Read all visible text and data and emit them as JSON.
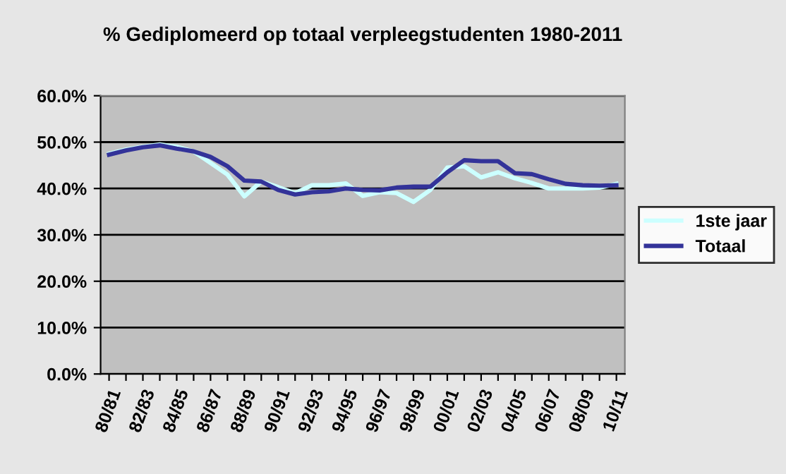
{
  "chart_data": {
    "type": "line",
    "title": "% Gediplomeerd op totaal verpleegstudenten 1980-2011",
    "categories": [
      "80/81",
      null,
      "82/83",
      null,
      "84/85",
      null,
      "86/87",
      null,
      "88/89",
      null,
      "90/91",
      null,
      "92/93",
      null,
      "94/95",
      null,
      "96/97",
      null,
      "98/99",
      null,
      "00/01",
      null,
      "02/03",
      null,
      "04/05",
      null,
      "06/07",
      null,
      "08/09",
      null,
      "10/11"
    ],
    "series": [
      {
        "name": "1ste jaar",
        "color": "#ccffff",
        "values": [
          47.5,
          48.4,
          49.0,
          49.5,
          49.0,
          48.0,
          45.5,
          43.0,
          38.3,
          41.5,
          40.3,
          39.0,
          40.7,
          40.7,
          41.1,
          38.4,
          39.2,
          39.0,
          37.1,
          39.7,
          44.5,
          44.8,
          42.4,
          43.5,
          42.2,
          41.2,
          40.0,
          40.0,
          40.0,
          40.2,
          41.0
        ]
      },
      {
        "name": "Totaal",
        "color": "#333399",
        "values": [
          47.3,
          48.2,
          48.9,
          49.3,
          48.6,
          48.0,
          46.8,
          44.8,
          41.7,
          41.5,
          39.7,
          38.7,
          39.2,
          39.4,
          40.0,
          39.7,
          39.6,
          40.2,
          40.4,
          40.4,
          43.5,
          46.1,
          45.9,
          45.9,
          43.3,
          43.1,
          42.0,
          41.0,
          40.7,
          40.6,
          40.7
        ]
      }
    ],
    "ylim": [
      0,
      60
    ],
    "yticks": [
      {
        "value": 0,
        "label": "0.0%"
      },
      {
        "value": 10,
        "label": "10.0%"
      },
      {
        "value": 20,
        "label": "20.0%"
      },
      {
        "value": 30,
        "label": "30.0%"
      },
      {
        "value": 40,
        "label": "40.0%"
      },
      {
        "value": 50,
        "label": "50.0%"
      },
      {
        "value": 60,
        "label": "60.0%"
      }
    ],
    "grid": "y",
    "legend": "right",
    "marker": "none",
    "line_style": "solid"
  }
}
